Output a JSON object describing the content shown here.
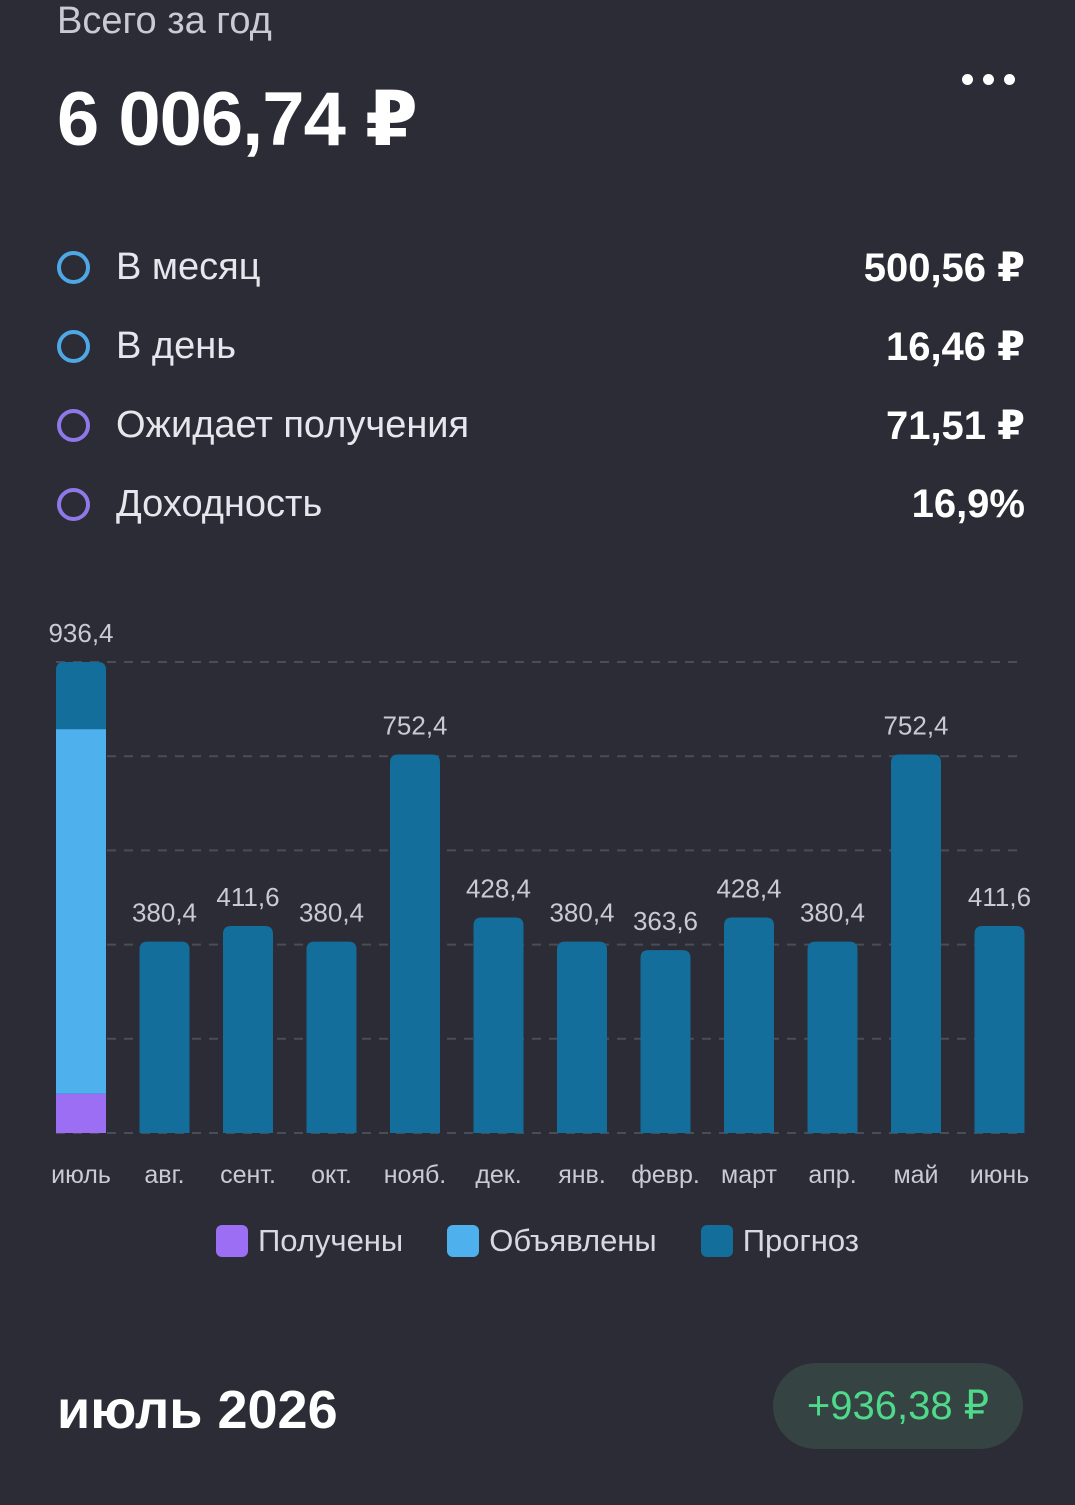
{
  "header": {
    "subtitle": "Всего за год",
    "total": "6 006,74 ₽",
    "more_icon": "more-horizontal-icon"
  },
  "stats": [
    {
      "label": "В месяц",
      "value": "500,56 ₽",
      "ring_color": "#4ea8e6"
    },
    {
      "label": "В день",
      "value": "16,46 ₽",
      "ring_color": "#4ea8e6"
    },
    {
      "label": "Ожидает получения",
      "value": "71,51 ₽",
      "ring_color": "#8f78e8"
    },
    {
      "label": "Доходность",
      "value": "16,9%",
      "ring_color": "#8f78e8"
    }
  ],
  "chart_data": {
    "type": "bar",
    "stacked": true,
    "categories": [
      "июль",
      "авг.",
      "сент.",
      "окт.",
      "нояб.",
      "дек.",
      "янв.",
      "февр.",
      "март",
      "апр.",
      "май",
      "июнь"
    ],
    "total_labels": [
      "936,4",
      "380,4",
      "411,6",
      "380,4",
      "752,4",
      "428,4",
      "380,4",
      "363,6",
      "428,4",
      "380,4",
      "752,4",
      "411,6"
    ],
    "series": [
      {
        "name": "Получены",
        "color": "#9b6ef3",
        "values": [
          78,
          0,
          0,
          0,
          0,
          0,
          0,
          0,
          0,
          0,
          0,
          0
        ]
      },
      {
        "name": "Объявлены",
        "color": "#4fb0ee",
        "values": [
          725,
          0,
          0,
          0,
          0,
          0,
          0,
          0,
          0,
          0,
          0,
          0
        ]
      },
      {
        "name": "Прогноз",
        "color": "#136e9c",
        "values": [
          133.4,
          380.4,
          411.6,
          380.4,
          752.4,
          428.4,
          380.4,
          363.6,
          428.4,
          380.4,
          752.4,
          411.6
        ]
      }
    ],
    "ylim": [
      0,
      936.4
    ],
    "grid": true,
    "legend_position": "bottom"
  },
  "footer": {
    "period": "июль 2026",
    "amount": "+936,38 ₽",
    "amount_color": "#4fd98a"
  }
}
